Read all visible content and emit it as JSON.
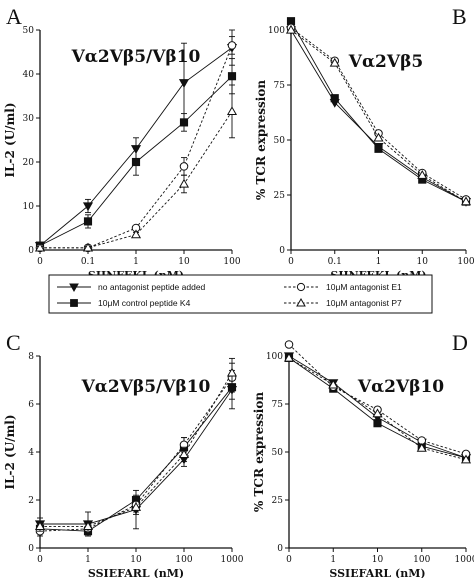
{
  "legend": {
    "entries": [
      {
        "label": "no antagonist peptide added",
        "marker": "triangle-down-filled",
        "dash": "solid"
      },
      {
        "label": "10μM control peptide K4",
        "marker": "square-filled",
        "dash": "solid"
      },
      {
        "label": "10μM antagonist E1",
        "marker": "circle-open",
        "dash": "dashed"
      },
      {
        "label": "10μM antagonist P7",
        "marker": "triangle-up-open",
        "dash": "dashed"
      }
    ]
  },
  "chart_data": [
    {
      "panel": "A",
      "type": "line",
      "title": "Vα2Vβ5/Vβ10",
      "xlabel": "SIINFEKL  (nM)",
      "ylabel": "IL-2  (U/ml)",
      "x_scale": "log-with-zero",
      "x": [
        0,
        0.1,
        1,
        10,
        100
      ],
      "xtick_labels": [
        "0",
        "0.1",
        "1",
        "10",
        "100"
      ],
      "ylim": [
        0,
        50
      ],
      "yticks": [
        0,
        10,
        20,
        30,
        40,
        50
      ],
      "series": [
        {
          "name": "no antagonist peptide added",
          "values": [
            1,
            10,
            23,
            38,
            46
          ],
          "errors": [
            0.5,
            1.5,
            2.5,
            9,
            4
          ]
        },
        {
          "name": "10μM control peptide K4",
          "values": [
            1,
            6.5,
            20,
            29,
            39.5
          ],
          "errors": [
            0.5,
            1.5,
            3,
            2,
            4
          ]
        },
        {
          "name": "10μM antagonist E1",
          "values": [
            0.5,
            0.5,
            5,
            19,
            46.5
          ],
          "errors": [
            0.3,
            0.3,
            0.5,
            2,
            2
          ]
        },
        {
          "name": "10μM antagonist P7",
          "values": [
            0.5,
            0.5,
            3.5,
            15,
            31.5
          ],
          "errors": [
            0.3,
            0.3,
            0.5,
            2,
            6
          ]
        }
      ]
    },
    {
      "panel": "B",
      "type": "line",
      "title": "Vα2Vβ5",
      "xlabel": "SIINFEKL  (nM)",
      "ylabel": "% TCR expression",
      "x_scale": "log-with-zero",
      "x": [
        0,
        0.1,
        1,
        10,
        100
      ],
      "xtick_labels": [
        "0",
        "0.1",
        "1",
        "10",
        "100"
      ],
      "ylim": [
        0,
        100
      ],
      "yticks": [
        0,
        25,
        50,
        75,
        100
      ],
      "series": [
        {
          "name": "no antagonist peptide added",
          "values": [
            100,
            67,
            47,
            33,
            22
          ]
        },
        {
          "name": "10μM control peptide K4",
          "values": [
            104,
            69,
            46,
            32,
            22
          ]
        },
        {
          "name": "10μM antagonist E1",
          "values": [
            101,
            86,
            53,
            35,
            23
          ]
        },
        {
          "name": "10μM antagonist P7",
          "values": [
            100,
            85,
            51,
            34,
            22
          ]
        }
      ]
    },
    {
      "panel": "C",
      "type": "line",
      "title": "Vα2Vβ5/Vβ10",
      "xlabel": "SSIEFARL  (nM)",
      "ylabel": "IL-2  (U/ml)",
      "x_scale": "log-with-zero",
      "x": [
        0,
        1,
        10,
        100,
        1000
      ],
      "xtick_labels": [
        "0",
        "1",
        "10",
        "100",
        "1000"
      ],
      "ylim": [
        0,
        8
      ],
      "yticks": [
        0,
        2,
        4,
        6,
        8
      ],
      "series": [
        {
          "name": "no antagonist peptide added",
          "values": [
            1.0,
            1.0,
            1.6,
            3.7,
            6.6
          ],
          "errors": [
            0.25,
            0.5,
            0.8,
            0.3,
            0.8
          ]
        },
        {
          "name": "10μM control peptide K4",
          "values": [
            0.8,
            0.7,
            2.0,
            4.2,
            6.7
          ],
          "errors": [
            0.2,
            0.2,
            0.2,
            0.4,
            0.5
          ]
        },
        {
          "name": "10μM antagonist E1",
          "values": [
            0.7,
            0.8,
            1.8,
            4.3,
            7.1
          ],
          "errors": [
            0.2,
            0.2,
            0.3,
            0.3,
            0.6
          ]
        },
        {
          "name": "10μM antagonist P7",
          "values": [
            0.9,
            0.9,
            1.7,
            3.9,
            7.3
          ],
          "errors": [
            0.2,
            0.2,
            0.3,
            0.3,
            0.6
          ]
        }
      ]
    },
    {
      "panel": "D",
      "type": "line",
      "title": "Vα2Vβ10",
      "xlabel": "SSIEFARL  (nM)",
      "ylabel": "% TCR expression",
      "x_scale": "log-with-zero",
      "x": [
        0,
        1,
        10,
        100,
        1000
      ],
      "xtick_labels": [
        "0",
        "1",
        "10",
        "100",
        "1000"
      ],
      "ylim": [
        0,
        100
      ],
      "yticks": [
        0,
        25,
        50,
        75,
        100
      ],
      "series": [
        {
          "name": "no antagonist peptide added",
          "values": [
            100,
            86,
            68,
            55,
            47
          ]
        },
        {
          "name": "10μM control peptide K4",
          "values": [
            99,
            83,
            65,
            53,
            47
          ]
        },
        {
          "name": "10μM antagonist E1",
          "values": [
            106,
            84,
            72,
            56,
            49
          ]
        },
        {
          "name": "10μM antagonist P7",
          "values": [
            99,
            85,
            70,
            52,
            46
          ]
        }
      ]
    }
  ]
}
